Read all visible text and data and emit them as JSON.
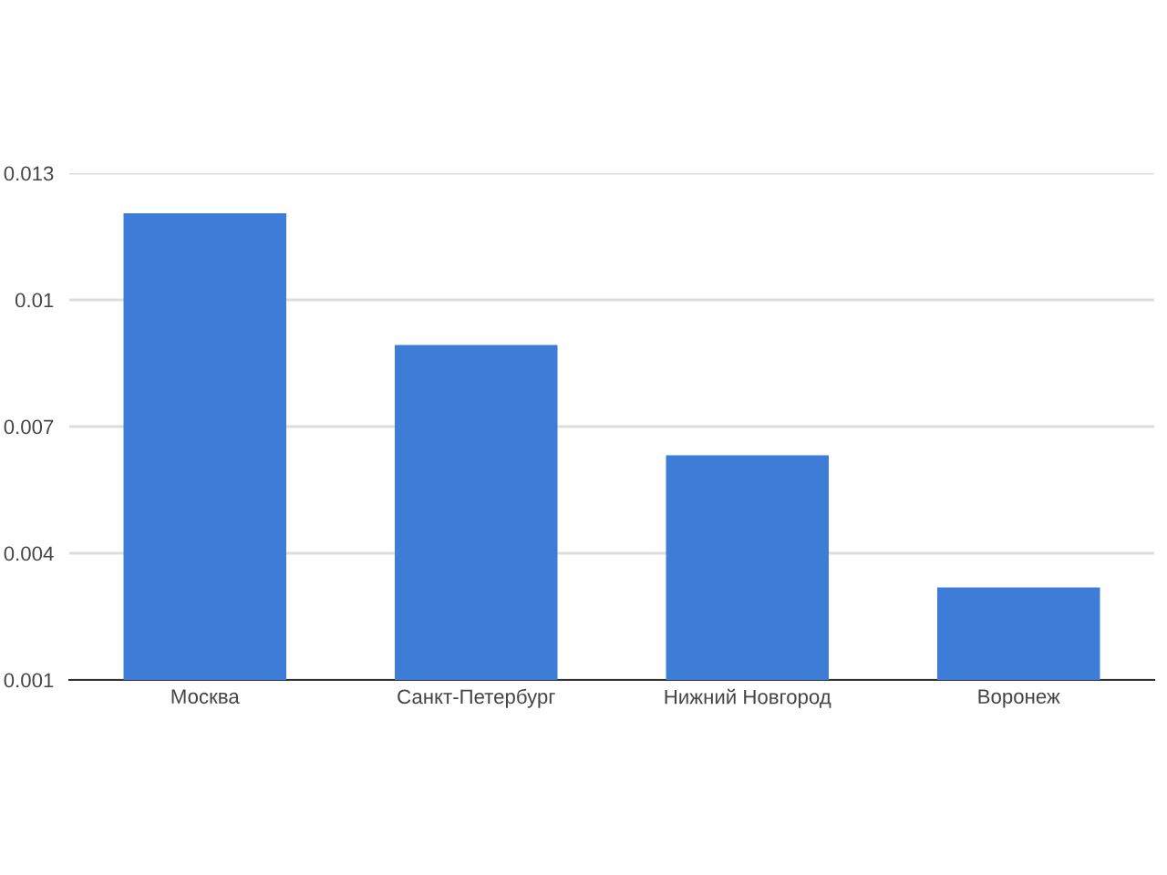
{
  "chart_data": {
    "type": "bar",
    "categories": [
      "Москва",
      "Санкт-Петербург",
      "Нижний Новгород",
      "Воронеж"
    ],
    "values": [
      0.01205,
      0.00893,
      0.00632,
      0.00319
    ],
    "color": "#3d7dd8",
    "ylim": [
      0.001,
      0.013
    ],
    "yticks": [
      0.001,
      0.004,
      0.007,
      0.01,
      0.013
    ],
    "grid": "y"
  }
}
